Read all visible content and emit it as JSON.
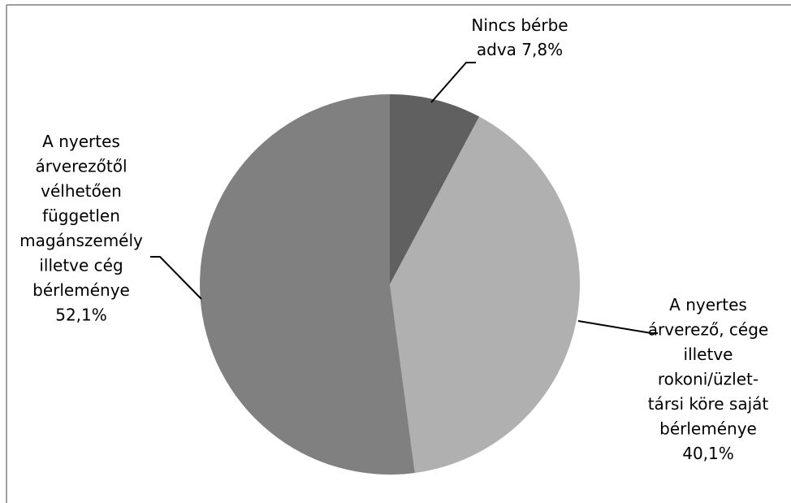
{
  "chart_data": {
    "type": "pie",
    "title": "",
    "series": [
      {
        "values": [
          7.8,
          40.1,
          52.1
        ]
      }
    ],
    "slices": [
      {
        "value": 7.8,
        "label_lines": [
          "Nincs bérbe",
          "adva 7,8%"
        ],
        "color": "#606060"
      },
      {
        "value": 40.1,
        "label_lines": [
          "A nyertes",
          "árverező, cége",
          "illetve",
          "rokoni/üzlet-",
          "társi köre saját",
          "bérleménye",
          "40,1%"
        ],
        "color": "#b0b0b0"
      },
      {
        "value": 52.1,
        "label_lines": [
          "A nyertes",
          "árverezőtől",
          "vélhetően",
          "független",
          "magánszemély",
          "illetve cég",
          "bérleménye",
          "52,1%"
        ],
        "color": "#808080"
      }
    ],
    "start_angle_deg": 0,
    "direction": "clockwise",
    "legend": "none",
    "border_color": "#808080"
  }
}
